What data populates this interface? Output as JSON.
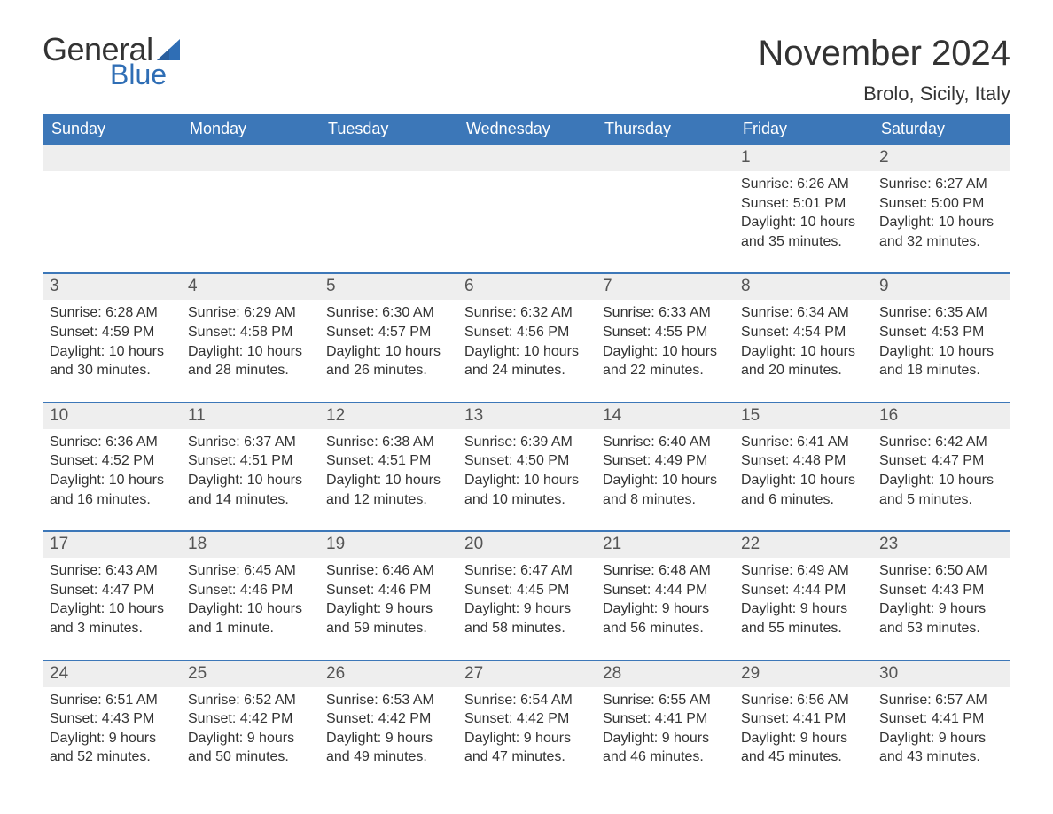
{
  "logo": {
    "line1": "General",
    "line2": "Blue",
    "sail_color": "#2f6eb5",
    "text_color_dark": "#333333",
    "text_color_blue": "#2f6eb5"
  },
  "header": {
    "month_title": "November 2024",
    "location": "Brolo, Sicily, Italy"
  },
  "colors": {
    "header_bg": "#3c77b8",
    "header_text": "#ffffff",
    "band_bg": "#eeeeee",
    "border": "#3c77b8",
    "body_bg": "#ffffff",
    "text": "#333333"
  },
  "weekdays": [
    "Sunday",
    "Monday",
    "Tuesday",
    "Wednesday",
    "Thursday",
    "Friday",
    "Saturday"
  ],
  "weeks": [
    [
      {
        "n": "",
        "sunrise": "",
        "sunset": "",
        "daylight1": "",
        "daylight2": ""
      },
      {
        "n": "",
        "sunrise": "",
        "sunset": "",
        "daylight1": "",
        "daylight2": ""
      },
      {
        "n": "",
        "sunrise": "",
        "sunset": "",
        "daylight1": "",
        "daylight2": ""
      },
      {
        "n": "",
        "sunrise": "",
        "sunset": "",
        "daylight1": "",
        "daylight2": ""
      },
      {
        "n": "",
        "sunrise": "",
        "sunset": "",
        "daylight1": "",
        "daylight2": ""
      },
      {
        "n": "1",
        "sunrise": "Sunrise: 6:26 AM",
        "sunset": "Sunset: 5:01 PM",
        "daylight1": "Daylight: 10 hours",
        "daylight2": "and 35 minutes."
      },
      {
        "n": "2",
        "sunrise": "Sunrise: 6:27 AM",
        "sunset": "Sunset: 5:00 PM",
        "daylight1": "Daylight: 10 hours",
        "daylight2": "and 32 minutes."
      }
    ],
    [
      {
        "n": "3",
        "sunrise": "Sunrise: 6:28 AM",
        "sunset": "Sunset: 4:59 PM",
        "daylight1": "Daylight: 10 hours",
        "daylight2": "and 30 minutes."
      },
      {
        "n": "4",
        "sunrise": "Sunrise: 6:29 AM",
        "sunset": "Sunset: 4:58 PM",
        "daylight1": "Daylight: 10 hours",
        "daylight2": "and 28 minutes."
      },
      {
        "n": "5",
        "sunrise": "Sunrise: 6:30 AM",
        "sunset": "Sunset: 4:57 PM",
        "daylight1": "Daylight: 10 hours",
        "daylight2": "and 26 minutes."
      },
      {
        "n": "6",
        "sunrise": "Sunrise: 6:32 AM",
        "sunset": "Sunset: 4:56 PM",
        "daylight1": "Daylight: 10 hours",
        "daylight2": "and 24 minutes."
      },
      {
        "n": "7",
        "sunrise": "Sunrise: 6:33 AM",
        "sunset": "Sunset: 4:55 PM",
        "daylight1": "Daylight: 10 hours",
        "daylight2": "and 22 minutes."
      },
      {
        "n": "8",
        "sunrise": "Sunrise: 6:34 AM",
        "sunset": "Sunset: 4:54 PM",
        "daylight1": "Daylight: 10 hours",
        "daylight2": "and 20 minutes."
      },
      {
        "n": "9",
        "sunrise": "Sunrise: 6:35 AM",
        "sunset": "Sunset: 4:53 PM",
        "daylight1": "Daylight: 10 hours",
        "daylight2": "and 18 minutes."
      }
    ],
    [
      {
        "n": "10",
        "sunrise": "Sunrise: 6:36 AM",
        "sunset": "Sunset: 4:52 PM",
        "daylight1": "Daylight: 10 hours",
        "daylight2": "and 16 minutes."
      },
      {
        "n": "11",
        "sunrise": "Sunrise: 6:37 AM",
        "sunset": "Sunset: 4:51 PM",
        "daylight1": "Daylight: 10 hours",
        "daylight2": "and 14 minutes."
      },
      {
        "n": "12",
        "sunrise": "Sunrise: 6:38 AM",
        "sunset": "Sunset: 4:51 PM",
        "daylight1": "Daylight: 10 hours",
        "daylight2": "and 12 minutes."
      },
      {
        "n": "13",
        "sunrise": "Sunrise: 6:39 AM",
        "sunset": "Sunset: 4:50 PM",
        "daylight1": "Daylight: 10 hours",
        "daylight2": "and 10 minutes."
      },
      {
        "n": "14",
        "sunrise": "Sunrise: 6:40 AM",
        "sunset": "Sunset: 4:49 PM",
        "daylight1": "Daylight: 10 hours",
        "daylight2": "and 8 minutes."
      },
      {
        "n": "15",
        "sunrise": "Sunrise: 6:41 AM",
        "sunset": "Sunset: 4:48 PM",
        "daylight1": "Daylight: 10 hours",
        "daylight2": "and 6 minutes."
      },
      {
        "n": "16",
        "sunrise": "Sunrise: 6:42 AM",
        "sunset": "Sunset: 4:47 PM",
        "daylight1": "Daylight: 10 hours",
        "daylight2": "and 5 minutes."
      }
    ],
    [
      {
        "n": "17",
        "sunrise": "Sunrise: 6:43 AM",
        "sunset": "Sunset: 4:47 PM",
        "daylight1": "Daylight: 10 hours",
        "daylight2": "and 3 minutes."
      },
      {
        "n": "18",
        "sunrise": "Sunrise: 6:45 AM",
        "sunset": "Sunset: 4:46 PM",
        "daylight1": "Daylight: 10 hours",
        "daylight2": "and 1 minute."
      },
      {
        "n": "19",
        "sunrise": "Sunrise: 6:46 AM",
        "sunset": "Sunset: 4:46 PM",
        "daylight1": "Daylight: 9 hours",
        "daylight2": "and 59 minutes."
      },
      {
        "n": "20",
        "sunrise": "Sunrise: 6:47 AM",
        "sunset": "Sunset: 4:45 PM",
        "daylight1": "Daylight: 9 hours",
        "daylight2": "and 58 minutes."
      },
      {
        "n": "21",
        "sunrise": "Sunrise: 6:48 AM",
        "sunset": "Sunset: 4:44 PM",
        "daylight1": "Daylight: 9 hours",
        "daylight2": "and 56 minutes."
      },
      {
        "n": "22",
        "sunrise": "Sunrise: 6:49 AM",
        "sunset": "Sunset: 4:44 PM",
        "daylight1": "Daylight: 9 hours",
        "daylight2": "and 55 minutes."
      },
      {
        "n": "23",
        "sunrise": "Sunrise: 6:50 AM",
        "sunset": "Sunset: 4:43 PM",
        "daylight1": "Daylight: 9 hours",
        "daylight2": "and 53 minutes."
      }
    ],
    [
      {
        "n": "24",
        "sunrise": "Sunrise: 6:51 AM",
        "sunset": "Sunset: 4:43 PM",
        "daylight1": "Daylight: 9 hours",
        "daylight2": "and 52 minutes."
      },
      {
        "n": "25",
        "sunrise": "Sunrise: 6:52 AM",
        "sunset": "Sunset: 4:42 PM",
        "daylight1": "Daylight: 9 hours",
        "daylight2": "and 50 minutes."
      },
      {
        "n": "26",
        "sunrise": "Sunrise: 6:53 AM",
        "sunset": "Sunset: 4:42 PM",
        "daylight1": "Daylight: 9 hours",
        "daylight2": "and 49 minutes."
      },
      {
        "n": "27",
        "sunrise": "Sunrise: 6:54 AM",
        "sunset": "Sunset: 4:42 PM",
        "daylight1": "Daylight: 9 hours",
        "daylight2": "and 47 minutes."
      },
      {
        "n": "28",
        "sunrise": "Sunrise: 6:55 AM",
        "sunset": "Sunset: 4:41 PM",
        "daylight1": "Daylight: 9 hours",
        "daylight2": "and 46 minutes."
      },
      {
        "n": "29",
        "sunrise": "Sunrise: 6:56 AM",
        "sunset": "Sunset: 4:41 PM",
        "daylight1": "Daylight: 9 hours",
        "daylight2": "and 45 minutes."
      },
      {
        "n": "30",
        "sunrise": "Sunrise: 6:57 AM",
        "sunset": "Sunset: 4:41 PM",
        "daylight1": "Daylight: 9 hours",
        "daylight2": "and 43 minutes."
      }
    ]
  ]
}
